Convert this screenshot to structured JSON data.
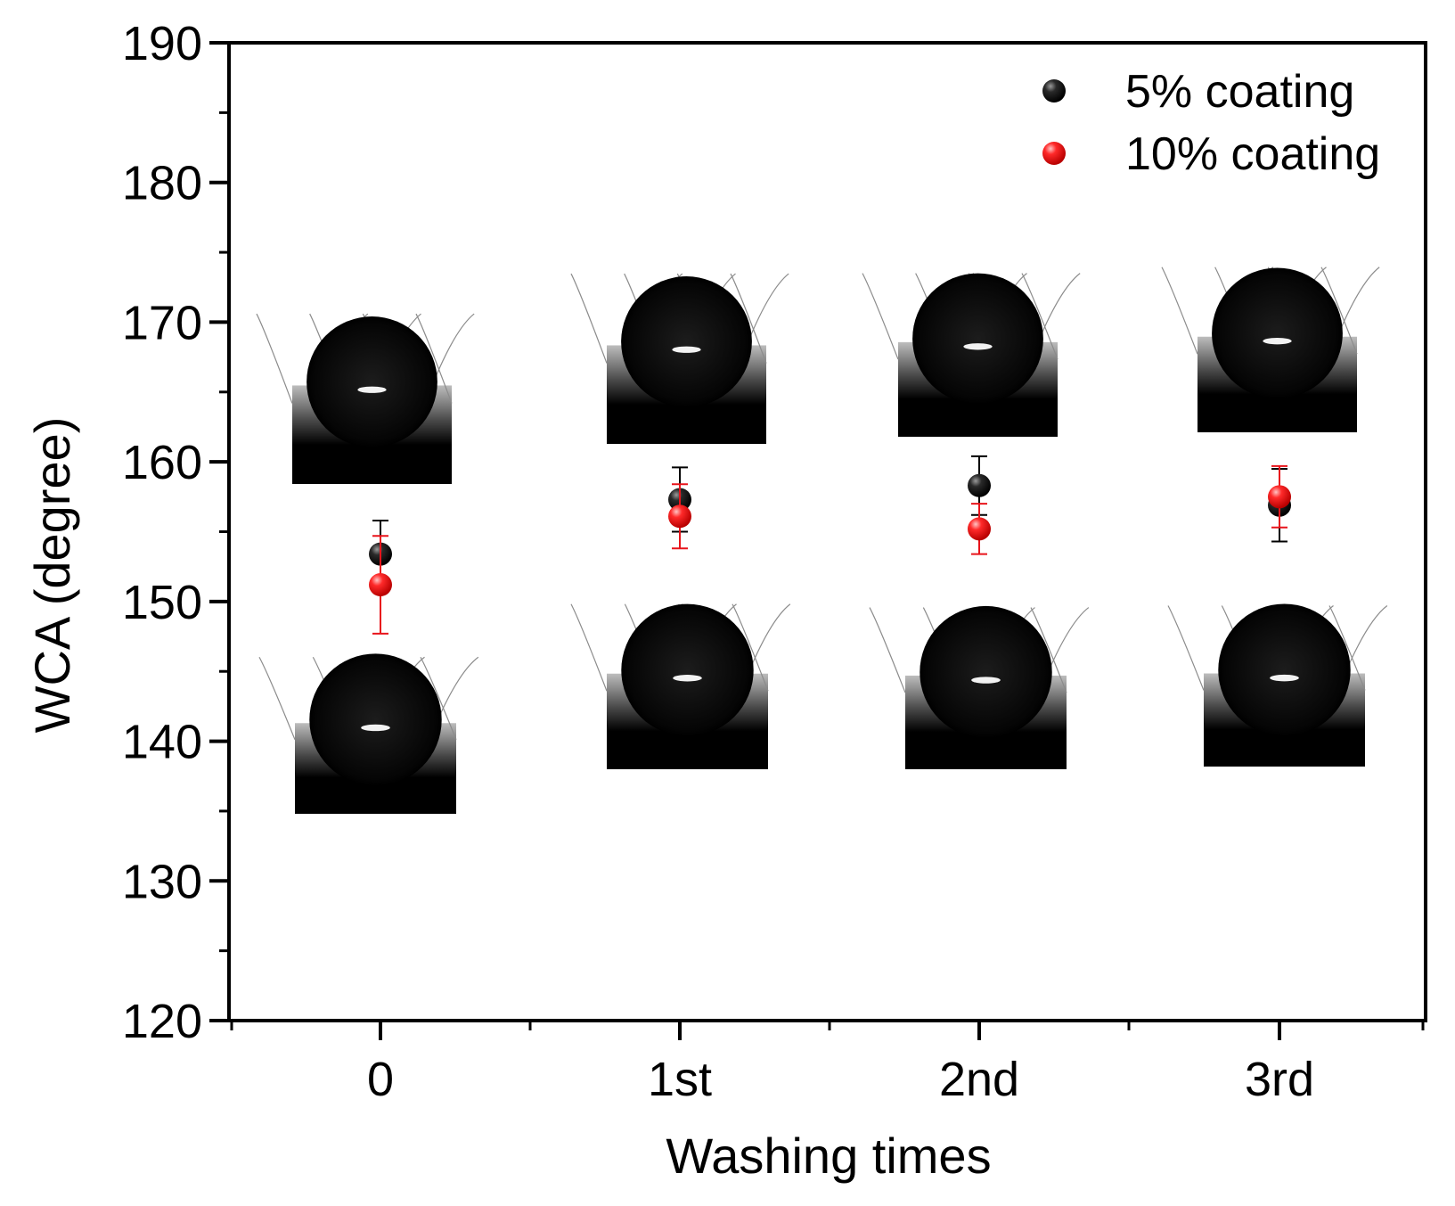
{
  "chart_data": {
    "type": "scatter",
    "title": "",
    "xlabel": "Washing times",
    "ylabel": "WCA (degree)",
    "categories": [
      "0",
      "1st",
      "2nd",
      "3rd"
    ],
    "ylim": [
      120,
      190
    ],
    "yticks": [
      120,
      130,
      140,
      150,
      160,
      170,
      180,
      190
    ],
    "grid": false,
    "legend_position": "top-right",
    "series": [
      {
        "name": "5% coating",
        "color": "#000000",
        "values": [
          153.4,
          157.3,
          158.3,
          156.9
        ],
        "errors": [
          2.4,
          2.3,
          2.1,
          2.6
        ]
      },
      {
        "name": "10% coating",
        "color": "#e8141b",
        "values": [
          151.2,
          156.1,
          155.2,
          157.5
        ],
        "errors": [
          3.5,
          2.3,
          1.8,
          2.2
        ]
      }
    ],
    "insets": {
      "icon": "water-droplet-photo",
      "description_free": true
    }
  }
}
